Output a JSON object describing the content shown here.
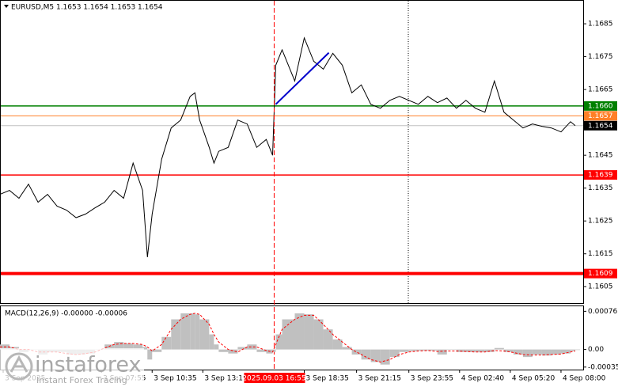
{
  "chart_data": [
    {
      "type": "line",
      "title": "EURUSD,M5  1.1653 1.1654 1.1653 1.1654",
      "x": [
        0,
        6,
        12,
        18,
        24,
        30,
        36,
        42,
        48,
        54,
        60,
        66,
        72,
        78,
        84,
        90,
        93,
        96,
        102,
        108,
        114,
        120,
        123,
        126,
        132,
        135,
        138,
        144,
        150,
        156,
        162,
        168,
        172,
        174,
        178,
        186,
        192,
        198,
        204,
        210,
        216,
        222,
        228,
        234,
        240,
        246,
        252,
        258,
        264,
        270,
        276,
        282,
        288,
        294,
        300,
        306,
        312,
        318,
        324,
        330,
        336,
        342,
        348,
        354,
        360,
        363
      ],
      "series": [
        {
          "color": "#000000",
          "values": [
            1.16331,
            1.16343,
            1.16319,
            1.16362,
            1.16307,
            1.16331,
            1.16295,
            1.16283,
            1.1626,
            1.16271,
            1.1629,
            1.16307,
            1.16343,
            1.16319,
            1.16426,
            1.16343,
            1.1614,
            1.16271,
            1.16438,
            1.16533,
            1.16557,
            1.16629,
            1.1664,
            1.16557,
            1.16474,
            1.16426,
            1.16462,
            1.16474,
            1.16557,
            1.16545,
            1.16474,
            1.16498,
            1.1645,
            1.16724,
            1.16771,
            1.16676,
            1.16807,
            1.16736,
            1.16712,
            1.1676,
            1.16724,
            1.1664,
            1.16664,
            1.16605,
            1.16593,
            1.16617,
            1.16629,
            1.16617,
            1.16605,
            1.16629,
            1.1661,
            1.16624,
            1.16593,
            1.16617,
            1.16593,
            1.16581,
            1.16676,
            1.16581,
            1.16557,
            1.16533,
            1.16545,
            1.16538,
            1.16533,
            1.16521,
            1.16552,
            1.1654
          ]
        }
      ],
      "xlim": [
        0,
        368
      ],
      "ylim": [
        1.16,
        1.1692
      ],
      "yticks": [
        1.1685,
        1.1675,
        1.1665,
        1.1645,
        1.1635,
        1.1625,
        1.1615,
        1.1605
      ],
      "xticks": [
        {
          "value": 2,
          "label": "3 Sep 2025"
        },
        {
          "value": 64,
          "label": "3 Sep 07:55"
        },
        {
          "value": 96,
          "label": "3 Sep 10:35"
        },
        {
          "value": 128,
          "label": "3 Sep 13:15"
        },
        {
          "value": 192,
          "label": "3 Sep 18:35"
        },
        {
          "value": 225,
          "label": "3 Sep 21:15"
        },
        {
          "value": 258,
          "label": "3 Sep 23:55"
        },
        {
          "value": 290,
          "label": "4 Sep 02:40"
        },
        {
          "value": 322,
          "label": "4 Sep 05:20"
        },
        {
          "value": 354,
          "label": "4 Sep 08:00"
        }
      ],
      "cursor": {
        "value": 173,
        "label": "2025.09.03 16:55",
        "color": "#ff0000"
      },
      "levels": [
        {
          "value": 1.166,
          "label": "1.1660",
          "color": "#008000",
          "label_background": "#008000",
          "width": 1.5
        },
        {
          "value": 1.1657,
          "label": "1.1657",
          "color": "#ff7f27",
          "label_background": "#ff7f27",
          "width": 1
        },
        {
          "value": 1.1654,
          "label": "1.1654",
          "color": "#c0c0c0",
          "label_background": "#000000",
          "width": 1
        },
        {
          "value": 1.1639,
          "label": "1.1639",
          "color": "#ff0000",
          "label_background": "#ff0000",
          "width": 1.5
        },
        {
          "value": 1.1609,
          "label": "1.1609",
          "color": "#ff0000",
          "label_background": "#ff0000",
          "width": 4
        }
      ],
      "trend_line": {
        "x": [
          174,
          207.5
        ],
        "values": [
          1.16605,
          1.16762
        ],
        "color": "#0000cc"
      }
    },
    {
      "type": "macd",
      "title": "MACD(12,26,9) -0.00000 -0.00006",
      "x": [
        0,
        6,
        12,
        18,
        24,
        30,
        36,
        42,
        48,
        54,
        60,
        66,
        72,
        78,
        84,
        90,
        93,
        96,
        102,
        108,
        114,
        120,
        123,
        126,
        132,
        135,
        138,
        144,
        150,
        156,
        162,
        168,
        172,
        174,
        178,
        186,
        192,
        198,
        204,
        210,
        216,
        222,
        228,
        234,
        240,
        246,
        252,
        258,
        264,
        270,
        276,
        282,
        288,
        294,
        300,
        306,
        312,
        318,
        324,
        330,
        336,
        342,
        348,
        354,
        360,
        363
      ],
      "series": [
        {
          "color": "#c0c0c0",
          "values": [
            0.0001,
            5e-05,
            -5e-05,
            0,
            -0.0001,
            -5e-05,
            -5e-05,
            -0.0001,
            -0.0001,
            -8e-05,
            0,
            0.0001,
            0.00015,
            0.00012,
            0.0001,
            5e-05,
            -0.0002,
            -5e-05,
            0.00025,
            0.0006,
            0.00072,
            0.00072,
            0.0007,
            0.0006,
            0.0003,
            0.0001,
            -5e-05,
            -8e-05,
            5e-05,
            0.0001,
            -5e-05,
            -8e-05,
            -5e-05,
            0.0003,
            0.0006,
            0.00072,
            0.0007,
            0.0006,
            0.0004,
            0.0002,
            5e-05,
            -0.0001,
            -0.0002,
            -0.00025,
            -0.0003,
            -0.00015,
            -5e-05,
            -3e-05,
            -2e-05,
            -2e-05,
            -0.0001,
            0,
            -5e-05,
            -5e-05,
            -5e-05,
            -5e-05,
            3e-05,
            -5e-05,
            -0.0001,
            -0.00015,
            -0.0001,
            -0.00012,
            -0.0001,
            -8e-05,
            -3e-05,
            -1e-05
          ]
        },
        {
          "color": "#ff0000",
          "values": [
            5e-05,
            5e-05,
            0,
            0,
            -5e-05,
            -5e-05,
            -5e-05,
            -8e-05,
            -0.0001,
            -8e-05,
            -5e-05,
            3e-05,
            0.0001,
            0.00012,
            0.00012,
            0.0001,
            5e-05,
            -3e-05,
            0.0001,
            0.0004,
            0.0006,
            0.0007,
            0.00072,
            0.0007,
            0.0005,
            0.0003,
            0.00015,
            0,
            -5e-05,
            5e-05,
            5e-05,
            -2e-05,
            -5e-05,
            0.0001,
            0.0004,
            0.0006,
            0.00068,
            0.00068,
            0.0005,
            0.0003,
            0.00015,
            0,
            -0.0001,
            -0.0002,
            -0.00025,
            -0.0002,
            -0.0001,
            -5e-05,
            -3e-05,
            -2e-05,
            -4e-05,
            -3e-05,
            -3e-05,
            -4e-05,
            -5e-05,
            -5e-05,
            -2e-05,
            -3e-05,
            -6e-05,
            -0.0001,
            -0.00011,
            -0.00011,
            -0.0001,
            -9e-05,
            -5e-05,
            -3e-05
          ]
        }
      ],
      "xlim": [
        0,
        368
      ],
      "ylim": [
        -0.0004,
        0.00086
      ],
      "yticks": [
        0.00076,
        {
          "value": 0,
          "label": "0.00"
        },
        -0.00035
      ]
    }
  ],
  "watermark": {
    "brand": "instaforex",
    "tagline": "Instant Forex Tracing"
  }
}
